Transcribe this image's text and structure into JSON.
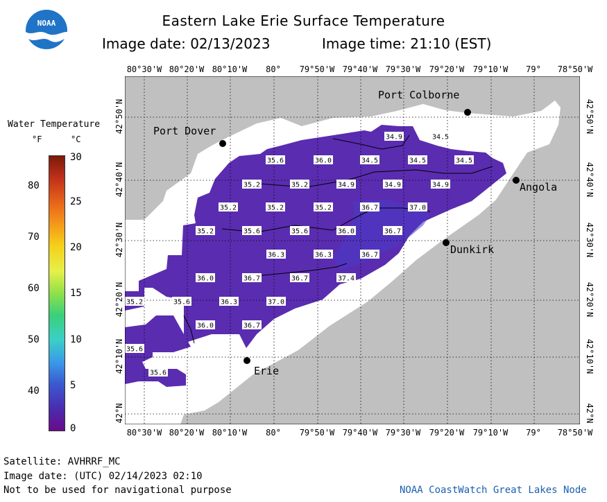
{
  "title": "Eastern Lake Erie Surface Temperature",
  "subtitle_date": "Image date: 02/13/2023",
  "subtitle_time": "Image time: 21:10 (EST)",
  "logo_text": "NOAA",
  "colors": {
    "land": "#c0c0c0",
    "water_white": "#ffffff",
    "temp_purple": "#5a2cb0",
    "temp_blue": "#4f3dc4"
  },
  "legend": {
    "title": "Water Temperature",
    "unit_f": "°F",
    "unit_c": "°C",
    "f_ticks": [
      "80",
      "70",
      "60",
      "50",
      "40"
    ],
    "c_ticks": [
      "30",
      "25",
      "20",
      "15",
      "10",
      "5",
      "0"
    ]
  },
  "longitude_labels": [
    "80°30'W",
    "80°20'W",
    "80°10'W",
    "80°",
    "79°50'W",
    "79°40'W",
    "79°30'W",
    "79°20'W",
    "79°10'W",
    "79°",
    "78°50'W"
  ],
  "latitude_labels": [
    "42°50'N",
    "42°40'N",
    "42°30'N",
    "42°20'N",
    "42°10'N",
    "42°N"
  ],
  "cities": [
    "Port Colborne",
    "Port Dover",
    "Angola",
    "Dunkirk",
    "Erie"
  ],
  "temperatures": [
    "34.9",
    "34.5",
    "35.6",
    "36.0",
    "34.5",
    "34.5",
    "34.5",
    "35.2",
    "35.2",
    "34.9",
    "34.9",
    "34.9",
    "35.2",
    "35.2",
    "35.2",
    "36.7",
    "37.0",
    "35.2",
    "35.6",
    "35.6",
    "36.0",
    "36.7",
    "36.3",
    "36.3",
    "36.7",
    "36.0",
    "36.7",
    "36.7",
    "37.4",
    "35.2",
    "35.6",
    "36.3",
    "37.0",
    "36.0",
    "36.7",
    "35.6",
    "35.6"
  ],
  "footer": {
    "satellite": "Satellite: AVHRRF_MC",
    "utc_date": "Image date: (UTC) 02/14/2023  02:10",
    "disclaimer": "Not to be used for navigational purpose",
    "credit": "NOAA CoastWatch Great Lakes Node"
  }
}
